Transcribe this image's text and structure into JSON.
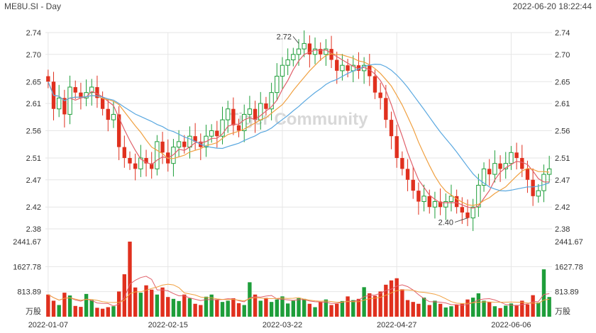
{
  "header": {
    "title": "ME8U.SI - Day",
    "timestamp": "2022-06-20 18:22:44"
  },
  "watermark": "Tiger Community",
  "colors": {
    "up": "#1e9e3a",
    "down": "#e0301e",
    "ma5": "#e0606a",
    "ma10": "#f0a040",
    "ma20": "#5aa8e0",
    "grid": "#e6e6e6"
  },
  "chart_data": {
    "type": "candlestick",
    "price_axis": {
      "ylim": [
        2.38,
        2.74
      ],
      "ticks": [
        2.74,
        2.7,
        2.65,
        2.61,
        2.56,
        2.51,
        2.47,
        2.42,
        2.38
      ]
    },
    "volume_axis": {
      "ylim": [
        0,
        2441.67
      ],
      "ticks": [
        "2441.67",
        "1627.78",
        "813.89"
      ],
      "unit": "万股"
    },
    "x_ticks": [
      "2022-01-07",
      "2022-02-15",
      "2022-03-22",
      "2022-04-27",
      "2022-06-06"
    ],
    "annotations": [
      {
        "label": "2.72",
        "index": 46,
        "price": 2.72
      },
      {
        "label": "2.40",
        "index": 77,
        "price": 2.4
      }
    ],
    "series_legend": [
      "MA5",
      "MA10",
      "MA20"
    ],
    "close": [
      2.65,
      2.6,
      2.62,
      2.59,
      2.64,
      2.63,
      2.62,
      2.63,
      2.64,
      2.62,
      2.6,
      2.58,
      2.59,
      2.53,
      2.51,
      2.5,
      2.49,
      2.51,
      2.5,
      2.49,
      2.54,
      2.52,
      2.5,
      2.53,
      2.54,
      2.53,
      2.55,
      2.54,
      2.53,
      2.55,
      2.56,
      2.55,
      2.58,
      2.6,
      2.57,
      2.56,
      2.59,
      2.6,
      2.58,
      2.61,
      2.6,
      2.63,
      2.66,
      2.68,
      2.69,
      2.7,
      2.71,
      2.72,
      2.7,
      2.71,
      2.7,
      2.71,
      2.69,
      2.67,
      2.68,
      2.67,
      2.68,
      2.67,
      2.68,
      2.66,
      2.63,
      2.62,
      2.58,
      2.55,
      2.51,
      2.49,
      2.47,
      2.45,
      2.43,
      2.44,
      2.42,
      2.43,
      2.42,
      2.43,
      2.44,
      2.42,
      2.41,
      2.4,
      2.42,
      2.46,
      2.49,
      2.48,
      2.5,
      2.49,
      2.5,
      2.52,
      2.51,
      2.49,
      2.47,
      2.44,
      2.45,
      2.48,
      2.49
    ],
    "volume": [
      720,
      520,
      380,
      780,
      690,
      350,
      320,
      740,
      540,
      290,
      260,
      310,
      340,
      820,
      1380,
      2441,
      950,
      780,
      1020,
      880,
      720,
      950,
      640,
      580,
      510,
      720,
      600,
      420,
      380,
      650,
      720,
      560,
      480,
      520,
      600,
      440,
      380,
      1120,
      720,
      520,
      610,
      480,
      560,
      660,
      430,
      520,
      600,
      580,
      420,
      310,
      480,
      560,
      380,
      420,
      510,
      660,
      540,
      580,
      960,
      760,
      680,
      820,
      1040,
      1180,
      1250,
      890,
      540,
      480,
      420,
      620,
      380,
      520,
      420,
      300,
      340,
      380,
      420,
      560,
      620,
      760,
      520,
      480,
      340,
      280,
      360,
      430,
      380,
      520,
      400,
      700,
      460,
      1540,
      640
    ]
  }
}
